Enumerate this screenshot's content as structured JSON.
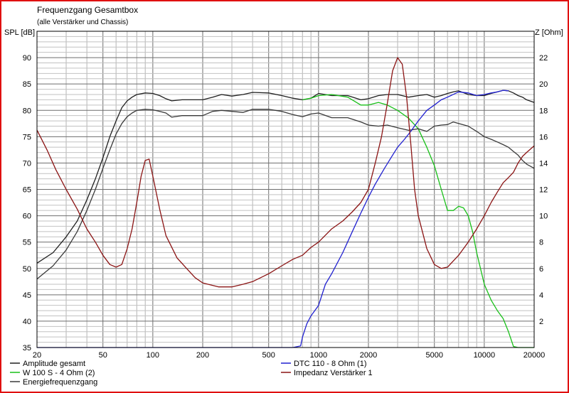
{
  "chart_data": {
    "type": "line",
    "title": "Frequenzgang Gesamtbox",
    "subtitle": "(alle Verstärker und Chassis)",
    "ylabel": "SPL [dB]",
    "y2label": "Z [Ohm]",
    "xscale": "log",
    "xlim": [
      20,
      20000
    ],
    "ylim": [
      35,
      95
    ],
    "y2lim": [
      0,
      24
    ],
    "x_ticks": [
      20,
      50,
      100,
      200,
      500,
      1000,
      2000,
      5000,
      10000,
      20000
    ],
    "y_ticks": [
      35,
      40,
      45,
      50,
      55,
      60,
      65,
      70,
      75,
      80,
      85,
      90
    ],
    "y2_ticks": [
      2,
      4,
      6,
      8,
      10,
      12,
      14,
      16,
      18,
      20,
      22
    ],
    "grid": true,
    "legend_placement": "bottom",
    "series": [
      {
        "name": "Amplitude gesamt",
        "axis": "left",
        "color": "#202020",
        "x": [
          20,
          25,
          30,
          35,
          40,
          45,
          50,
          55,
          60,
          65,
          70,
          75,
          80,
          90,
          100,
          110,
          120,
          130,
          150,
          170,
          200,
          230,
          260,
          300,
          350,
          400,
          500,
          600,
          700,
          800,
          900,
          1000,
          1200,
          1500,
          1800,
          2000,
          2300,
          2600,
          3000,
          3500,
          4000,
          4500,
          5000,
          5500,
          6000,
          6500,
          7000,
          8000,
          9000,
          10000,
          11000,
          12000,
          13000,
          14000,
          15000,
          16000,
          17000,
          18000,
          20000
        ],
        "y": [
          51,
          53,
          56,
          59,
          63,
          67,
          71,
          75,
          78,
          80.5,
          81.8,
          82.5,
          83,
          83.3,
          83.2,
          82.8,
          82.2,
          81.8,
          82,
          82,
          82,
          82.5,
          83,
          82.7,
          83,
          83.4,
          83.3,
          82.8,
          82.3,
          82,
          82.3,
          83.2,
          82.8,
          82.8,
          82,
          82.2,
          82.8,
          83,
          83,
          82.5,
          82.8,
          83,
          82.5,
          82.8,
          83.2,
          83.5,
          83.7,
          83,
          82.8,
          82.8,
          83.2,
          83.5,
          83.8,
          83.7,
          83.3,
          82.8,
          82.5,
          82,
          81.5
        ]
      },
      {
        "name": "W 100 S - 4 Ohm (2)",
        "axis": "left",
        "color": "#19c019",
        "x": [
          800,
          900,
          1000,
          1200,
          1500,
          1800,
          2000,
          2300,
          2600,
          3000,
          3500,
          4000,
          4500,
          5000,
          5500,
          6000,
          6500,
          7000,
          7500,
          8000,
          8500,
          9000,
          10000,
          11000,
          12000,
          13000,
          14000,
          15000,
          16000,
          17000,
          18000,
          20000
        ],
        "y": [
          82,
          82.3,
          82.8,
          83,
          82.5,
          81,
          81,
          81.5,
          81,
          80,
          78.5,
          76.5,
          73,
          69.5,
          65,
          61,
          61,
          61.8,
          61.5,
          60,
          57,
          53,
          47,
          44,
          42,
          40.5,
          38,
          35.2,
          35,
          35,
          35,
          35
        ]
      },
      {
        "name": "Energiefrequenzgang",
        "axis": "left",
        "color": "#3a3a3a",
        "x": [
          20,
          25,
          30,
          35,
          40,
          45,
          50,
          55,
          60,
          65,
          70,
          75,
          80,
          90,
          100,
          110,
          120,
          130,
          150,
          170,
          200,
          230,
          260,
          300,
          350,
          400,
          500,
          600,
          700,
          800,
          900,
          1000,
          1200,
          1500,
          1800,
          2000,
          2300,
          2600,
          3000,
          3500,
          4000,
          4500,
          5000,
          5500,
          6000,
          6500,
          7000,
          8000,
          9000,
          10000,
          11000,
          12000,
          13000,
          14000,
          15000,
          16000,
          17000,
          18000,
          20000
        ],
        "y": [
          48,
          50.5,
          53.5,
          57,
          61,
          65,
          69,
          72.5,
          75.5,
          77.5,
          78.8,
          79.5,
          80,
          80.2,
          80.1,
          79.8,
          79.5,
          78.7,
          79,
          79,
          79,
          79.8,
          80,
          79.8,
          79.6,
          80.2,
          80.2,
          79.8,
          79.2,
          78.8,
          79.3,
          79.5,
          78.6,
          78.6,
          77.8,
          77.2,
          77,
          77.2,
          76.7,
          76.2,
          76.5,
          76,
          77,
          77.2,
          77.3,
          77.8,
          77.5,
          77,
          76,
          75,
          74.5,
          74,
          73.5,
          73,
          72.2,
          71.5,
          70.5,
          69.8,
          69
        ]
      },
      {
        "name": "DTC 110 - 8 Ohm (1)",
        "axis": "left",
        "color": "#2020d0",
        "x": [
          20,
          500,
          700,
          780,
          800,
          850,
          900,
          1000,
          1100,
          1200,
          1400,
          1600,
          1800,
          2000,
          2200,
          2500,
          2800,
          3000,
          3300,
          3600,
          4000,
          4500,
          5000,
          5500,
          6000,
          7000,
          8000,
          9000,
          10000,
          11000,
          12000,
          13000,
          14000
        ],
        "y": [
          35,
          35,
          35,
          35.3,
          37,
          39.5,
          41,
          43,
          47,
          49,
          53,
          57,
          60.5,
          63.5,
          66,
          69,
          71.5,
          73,
          74.5,
          76,
          78,
          80,
          81,
          82,
          82.5,
          83.5,
          83.3,
          82.8,
          83,
          83.3,
          83.5,
          83.8,
          83.7
        ]
      },
      {
        "name": "Impedanz Verstärker 1",
        "axis": "right",
        "color": "#8b1414",
        "x": [
          20,
          23,
          26,
          30,
          35,
          40,
          45,
          50,
          55,
          60,
          65,
          70,
          75,
          80,
          85,
          90,
          95,
          100,
          110,
          120,
          140,
          160,
          180,
          200,
          250,
          300,
          350,
          400,
          500,
          600,
          700,
          800,
          900,
          1000,
          1200,
          1400,
          1600,
          1800,
          2000,
          2200,
          2400,
          2600,
          2800,
          3000,
          3200,
          3400,
          3600,
          3800,
          4000,
          4500,
          5000,
          5500,
          6000,
          7000,
          8000,
          9000,
          10000,
          11000,
          12000,
          13000,
          14000,
          15000,
          16000,
          17000,
          18000,
          20000
        ],
        "y": [
          16.5,
          15,
          13.5,
          12,
          10.5,
          9,
          8,
          7,
          6.3,
          6.1,
          6.3,
          7.5,
          9,
          11,
          13,
          14.2,
          14.3,
          13,
          10.5,
          8.5,
          6.8,
          6,
          5.3,
          4.9,
          4.6,
          4.6,
          4.8,
          5,
          5.6,
          6.2,
          6.7,
          7,
          7.6,
          8,
          9,
          9.6,
          10.3,
          11,
          12,
          14,
          16,
          18.5,
          21,
          22,
          21.5,
          19,
          15.5,
          12,
          10,
          7.5,
          6.3,
          6,
          6.1,
          7,
          8,
          9,
          10,
          11,
          11.8,
          12.5,
          12.9,
          13.3,
          14,
          14.5,
          14.8,
          15.3
        ]
      }
    ]
  },
  "legend": [
    {
      "label": "Amplitude gesamt",
      "color": "#202020"
    },
    {
      "label": "W 100 S - 4 Ohm (2)",
      "color": "#19c019"
    },
    {
      "label": "Energiefrequenzgang",
      "color": "#3a3a3a"
    },
    {
      "label": "DTC 110 - 8 Ohm (1)",
      "color": "#2020d0"
    },
    {
      "label": "Impedanz Verstärker 1",
      "color": "#8b1414"
    }
  ]
}
